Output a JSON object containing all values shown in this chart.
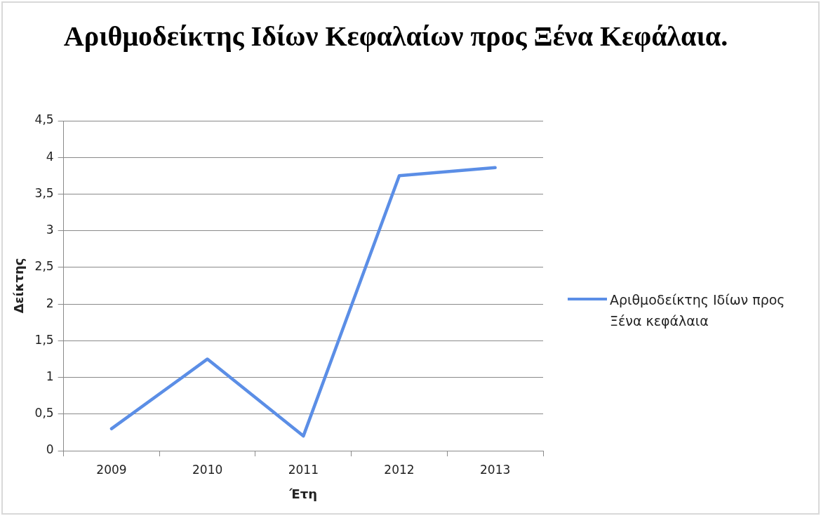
{
  "chart_data": {
    "type": "line",
    "title": "Αριθμοδείκτης Ιδίων Κεφαλαίων προς Ξένα Κεφάλαια.",
    "xlabel": "Έτη",
    "ylabel": "Δείκτης",
    "categories": [
      "2009",
      "2010",
      "2011",
      "2012",
      "2013"
    ],
    "series": [
      {
        "name": "Αριθμοδείκτης Ιδίων προς Ξένα κεφάλαια",
        "color": "#5b8ee6",
        "values": [
          0.3,
          1.25,
          0.2,
          3.75,
          3.86
        ]
      }
    ],
    "ylim": [
      0,
      4.5
    ],
    "yticks": [
      0,
      {
        "value": 0.5,
        "label": "0,5"
      },
      1,
      {
        "value": 1.5,
        "label": "1,5"
      },
      2,
      {
        "value": 2.5,
        "label": "2,5"
      },
      3,
      {
        "value": 3.5,
        "label": "3,5"
      },
      4,
      {
        "value": 4.5,
        "label": "4,5"
      }
    ],
    "grid": "y",
    "legend": "right"
  }
}
